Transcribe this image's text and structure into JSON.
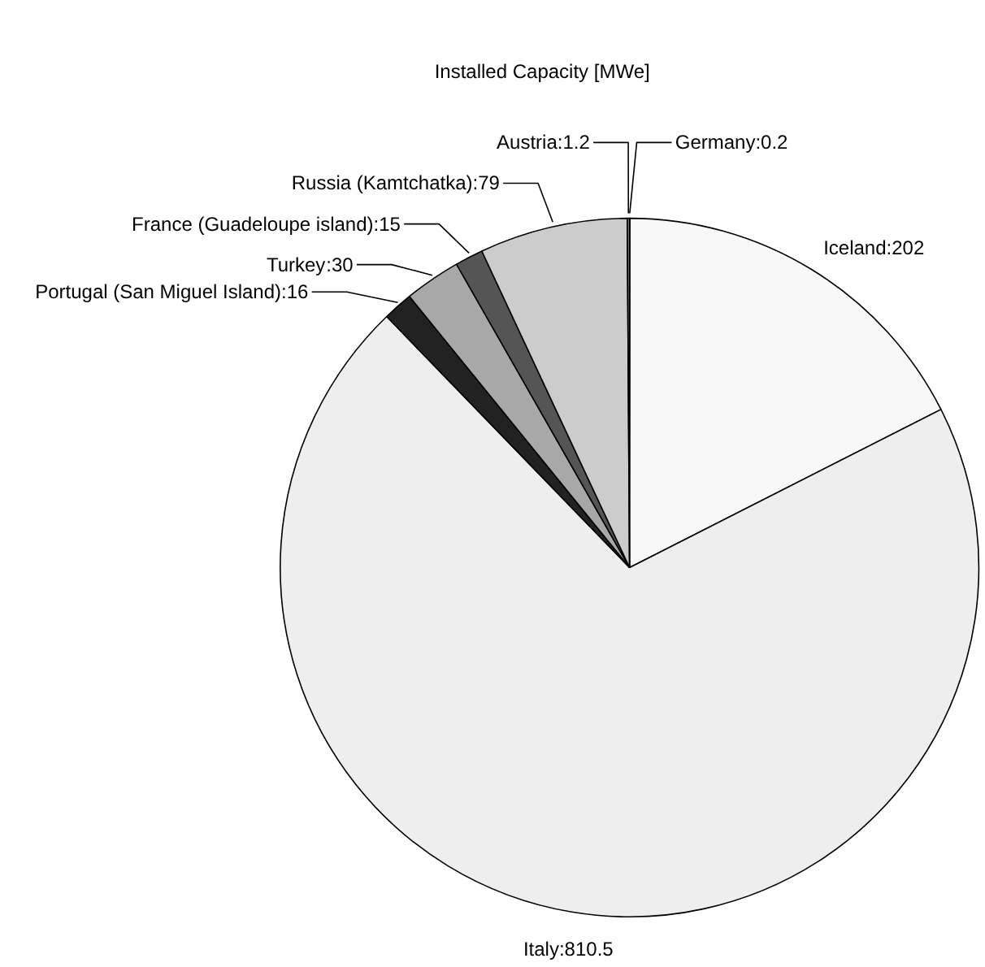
{
  "chart_data": {
    "type": "pie",
    "title": "Installed Capacity [MWe]",
    "categories": [
      "Germany",
      "Iceland",
      "Italy",
      "Portugal (San Miguel Island)",
      "Turkey",
      "France (Guadeloupe island)",
      "Russia (Kamtchatka)",
      "Austria"
    ],
    "values": [
      0.2,
      202,
      810.5,
      16,
      30,
      15,
      79,
      1.2
    ],
    "colors": [
      "#ffffff",
      "#f8f8f8",
      "#eeeeee",
      "#222222",
      "#a8a8a8",
      "#555555",
      "#cccccc",
      "#888888"
    ],
    "value_labels": [
      ":0.2",
      ":202",
      ":810.5",
      ":16",
      ":30",
      ":15",
      ":79",
      ":1.2"
    ]
  }
}
